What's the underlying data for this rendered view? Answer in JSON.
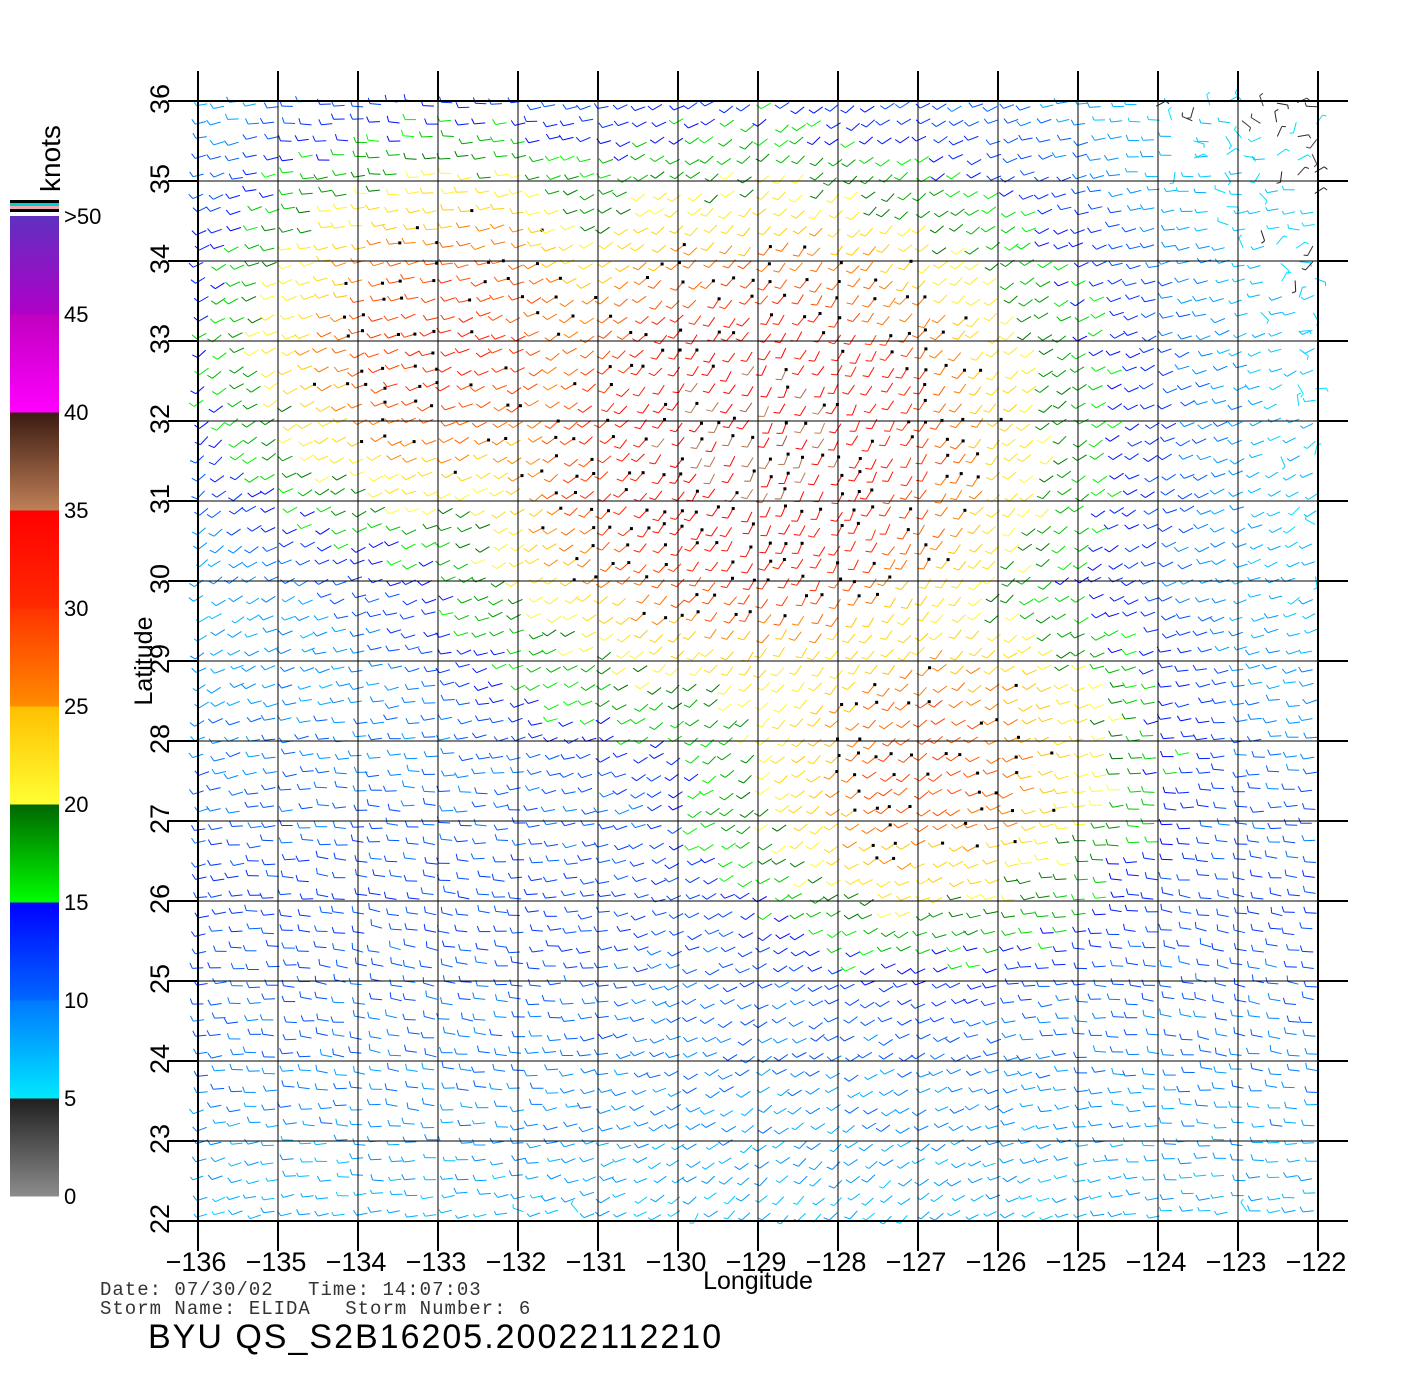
{
  "chart_data": {
    "type": "wind-barb-map",
    "xlabel": "Longitude",
    "ylabel": "Latitude",
    "xlim": [
      -136,
      -122
    ],
    "ylim": [
      22,
      36
    ],
    "x_ticks": [
      "-136",
      "-135",
      "-134",
      "-133",
      "-132",
      "-131",
      "-130",
      "-129",
      "-128",
      "-127",
      "-126",
      "-125",
      "-124",
      "-123",
      "-122"
    ],
    "y_ticks": [
      "22",
      "23",
      "24",
      "25",
      "26",
      "27",
      "28",
      "29",
      "30",
      "31",
      "32",
      "33",
      "34",
      "35",
      "36"
    ],
    "grid": true,
    "colorbar": {
      "label": "knots",
      "ticks": [
        "0",
        "5",
        "10",
        "15",
        "20",
        "25",
        "30",
        "35",
        "40",
        "45",
        ">50"
      ],
      "bands": [
        {
          "range": [
            0,
            5
          ],
          "from": "#8c8c8c",
          "to": "#1f1f1f"
        },
        {
          "range": [
            5,
            10
          ],
          "from": "#00e8ff",
          "to": "#0078ff"
        },
        {
          "range": [
            10,
            15
          ],
          "from": "#0068ff",
          "to": "#0000ff"
        },
        {
          "range": [
            15,
            20
          ],
          "from": "#00ff00",
          "to": "#006600"
        },
        {
          "range": [
            20,
            25
          ],
          "from": "#ffff33",
          "to": "#ffbf00"
        },
        {
          "range": [
            25,
            30
          ],
          "from": "#ff8c00",
          "to": "#ff3300"
        },
        {
          "range": [
            30,
            35
          ],
          "from": "#ff2a00",
          "to": "#ff0000"
        },
        {
          "range": [
            35,
            40
          ],
          "from": "#c08058",
          "to": "#3a1a10"
        },
        {
          "range": [
            40,
            45
          ],
          "from": "#ff00ff",
          "to": "#c000c0"
        },
        {
          "range": [
            45,
            50
          ],
          "from": "#b000c8",
          "to": "#6030c0"
        }
      ]
    },
    "wind_centers": [
      {
        "lon": -129.0,
        "lat": 31.8,
        "max_speed": 33
      },
      {
        "lon": -126.8,
        "lat": 27.8,
        "max_speed": 26
      },
      {
        "lon": -132.8,
        "lat": 33.0,
        "max_speed": 28
      }
    ],
    "wind_speed_range": [
      0,
      35
    ]
  },
  "footer": {
    "date_label": "Date:",
    "date": "07/30/02",
    "time_label": "Time:",
    "time": "14:07:03",
    "storm_name_label": "Storm Name:",
    "storm_name": "ELIDA",
    "storm_number_label": "Storm Number:",
    "storm_number": "6",
    "title": "BYU  QS_S2B16205.20022112210"
  }
}
